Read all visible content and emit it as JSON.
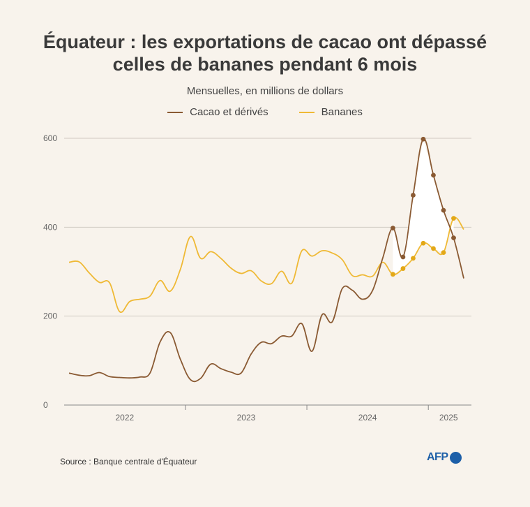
{
  "title_line1": "Équateur : les exportations de cacao ont dépassé",
  "title_line2": "celles de bananes pendant 6 mois",
  "subtitle": "Mensuelles, en millions de dollars",
  "source": "Source : Banque centrale d'Équateur",
  "logo_text": "AFP",
  "colors": {
    "cacao": "#8a5a33",
    "bananes": "#efb935",
    "banana_dots": "#e3a817",
    "grid": "#cfcac2",
    "axis": "#888888",
    "tick_text": "#666666",
    "fill": "#ffffff"
  },
  "chart_data": {
    "type": "line",
    "title": "Équateur : les exportations de cacao ont dépassé celles de bananes pendant 6 mois",
    "ylabel": "Mensuelles, en millions de dollars",
    "ylim": [
      0,
      600
    ],
    "yticks": [
      0,
      200,
      400,
      600
    ],
    "xlim": [
      0,
      40
    ],
    "x_periods": [
      {
        "label": "2022",
        "start": 0,
        "end": 12
      },
      {
        "label": "2023",
        "start": 12,
        "end": 24
      },
      {
        "label": "2024",
        "start": 24,
        "end": 36
      },
      {
        "label": "2025",
        "start": 36,
        "end": 40
      }
    ],
    "highlight_fill_range": [
      32,
      38
    ],
    "series": [
      {
        "name": "Cacao et dérivés",
        "key": "cacao",
        "x": [
          0,
          1,
          2,
          3,
          4,
          5,
          6,
          7,
          8,
          9,
          10,
          11,
          12,
          13,
          14,
          15,
          16,
          17,
          18,
          19,
          20,
          21,
          22,
          23,
          24,
          25,
          26,
          27,
          28,
          29,
          30,
          31,
          32,
          33,
          34,
          35,
          36,
          37,
          38,
          39
        ],
        "values": [
          72,
          67,
          66,
          73,
          64,
          62,
          61,
          63,
          72,
          142,
          163,
          103,
          57,
          60,
          92,
          82,
          74,
          72,
          115,
          141,
          138,
          155,
          155,
          183,
          121,
          203,
          187,
          262,
          258,
          238,
          258,
          331,
          398,
          333,
          472,
          598,
          517,
          438,
          376,
          285
        ],
        "markers_from": 32,
        "markers_to": 38
      },
      {
        "name": "Bananes",
        "key": "bananes",
        "x": [
          0,
          1,
          2,
          3,
          4,
          5,
          6,
          7,
          8,
          9,
          10,
          11,
          12,
          13,
          14,
          15,
          16,
          17,
          18,
          19,
          20,
          21,
          22,
          23,
          24,
          25,
          26,
          27,
          28,
          29,
          30,
          31,
          32,
          33,
          34,
          35,
          36,
          37,
          38,
          39
        ],
        "values": [
          321,
          322,
          297,
          276,
          275,
          210,
          233,
          238,
          245,
          280,
          256,
          305,
          379,
          330,
          345,
          330,
          308,
          296,
          302,
          279,
          273,
          301,
          274,
          347,
          335,
          347,
          342,
          327,
          291,
          293,
          290,
          321,
          294,
          307,
          330,
          364,
          352,
          343,
          420,
          395
        ],
        "markers_from": 32,
        "markers_to": 38
      }
    ]
  }
}
